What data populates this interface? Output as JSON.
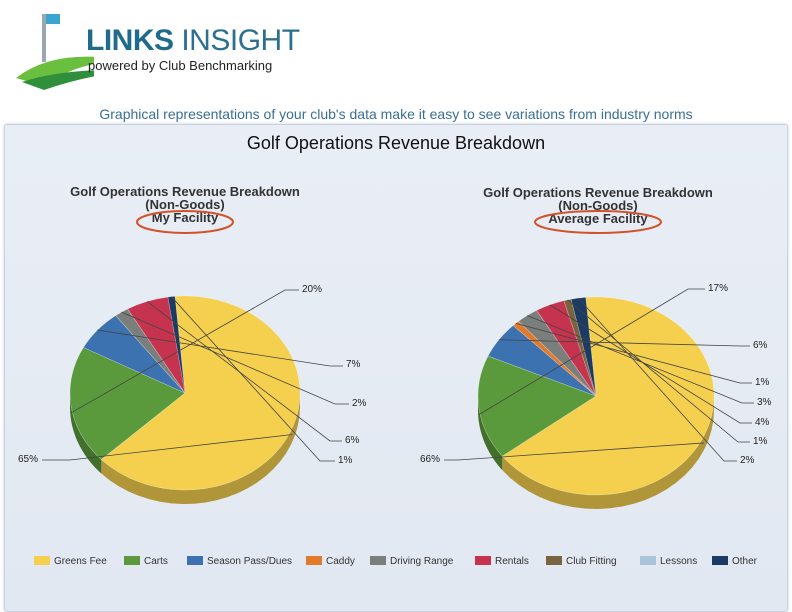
{
  "header": {
    "brand_primary": "LINKS",
    "brand_secondary": "INSIGHT",
    "brand_sub": "powered by Club Benchmarking",
    "tagline": "Graphical representations of your club's data make it easy to see variations from industry norms"
  },
  "panel": {
    "title": "Golf Operations Revenue Breakdown"
  },
  "legend": [
    {
      "name": "Greens Fee",
      "color": "#f5d04e"
    },
    {
      "name": "Carts",
      "color": "#5b9a3c"
    },
    {
      "name": "Season Pass/Dues",
      "color": "#3d72b0"
    },
    {
      "name": "Caddy",
      "color": "#e27a2b"
    },
    {
      "name": "Driving Range",
      "color": "#7a7f7c"
    },
    {
      "name": "Rentals",
      "color": "#c6334f"
    },
    {
      "name": "Club Fitting",
      "color": "#7a6440"
    },
    {
      "name": "Lessons",
      "color": "#a9c4db"
    },
    {
      "name": "Other",
      "color": "#1b3b62"
    }
  ],
  "chart_data": [
    {
      "type": "pie",
      "title_lines": [
        "Golf Operations Revenue Breakdown",
        "(Non-Goods)",
        "My Facility"
      ],
      "categories": [
        "Greens Fee",
        "Carts",
        "Season Pass/Dues",
        "Caddy",
        "Driving Range",
        "Rentals",
        "Club Fitting",
        "Lessons",
        "Other"
      ],
      "values": [
        65,
        20,
        7,
        0,
        2,
        6,
        0,
        0,
        1
      ],
      "labels": [
        "65%",
        "20%",
        "7%",
        "",
        "2%",
        "6%",
        "",
        "",
        "1%"
      ]
    },
    {
      "type": "pie",
      "title_lines": [
        "Golf Operations Revenue Breakdown",
        "(Non-Goods)",
        "Average Facility"
      ],
      "categories": [
        "Greens Fee",
        "Carts",
        "Season Pass/Dues",
        "Caddy",
        "Driving Range",
        "Rentals",
        "Club Fitting",
        "Lessons",
        "Other"
      ],
      "values": [
        66,
        17,
        6,
        1,
        3,
        4,
        1,
        0,
        2
      ],
      "labels": [
        "66%",
        "17%",
        "6%",
        "1%",
        "3%",
        "4%",
        "1%",
        "",
        "2%"
      ]
    }
  ]
}
